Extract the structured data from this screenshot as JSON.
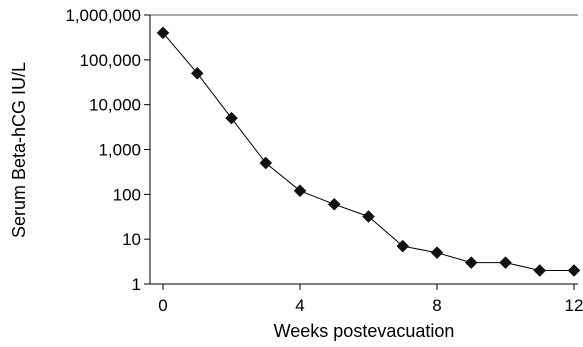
{
  "chart_data": {
    "type": "line",
    "title": "",
    "xlabel": "Weeks postevacuation",
    "ylabel": "Serum Beta-hCG IU/L",
    "y_scale": "log",
    "ylim": [
      1,
      1000000
    ],
    "xlim": [
      -0.7,
      12.5
    ],
    "grid": false,
    "marker": "diamond",
    "x_ticks": [
      0,
      4,
      8,
      12
    ],
    "x_tick_labels": [
      "0",
      "4",
      "8",
      "12"
    ],
    "y_ticks": [
      1,
      10,
      100,
      1000,
      10000,
      100000,
      1000000
    ],
    "y_tick_labels": [
      "1",
      "10",
      "100",
      "1,000",
      "10,000",
      "100,000",
      "1,000,000"
    ],
    "series": [
      {
        "x": [
          0,
          1,
          2,
          3,
          4,
          5,
          6,
          7,
          8,
          9,
          10,
          11,
          12
        ],
        "y": [
          400000,
          50000,
          5000,
          500,
          120,
          60,
          32,
          7,
          5,
          3,
          3,
          2,
          2
        ]
      }
    ]
  }
}
